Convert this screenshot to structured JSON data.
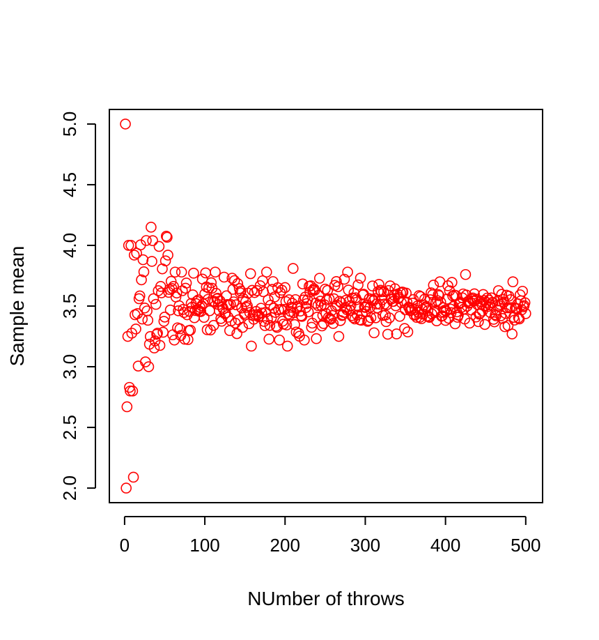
{
  "chart_data": {
    "type": "scatter",
    "title": "",
    "xlabel": "NUmber of throws",
    "ylabel": "Sample mean",
    "xlim": [
      -19,
      521
    ],
    "ylim": [
      1.88,
      5.12
    ],
    "x_ticks": [
      0,
      100,
      200,
      300,
      400,
      500
    ],
    "x_tick_labels": [
      "0",
      "100",
      "200",
      "300",
      "400",
      "500"
    ],
    "y_ticks": [
      2.0,
      2.5,
      3.0,
      3.5,
      4.0,
      4.5,
      5.0
    ],
    "y_tick_labels": [
      "2.0",
      "2.5",
      "3.0",
      "3.5",
      "4.0",
      "4.5",
      "5.0"
    ],
    "grid": false,
    "legend": "none",
    "marker": "open-circle",
    "marker_color": "#ff0000",
    "noted_points": [
      {
        "x": 1,
        "y": 5.0
      },
      {
        "x": 2,
        "y": 2.0
      },
      {
        "x": 3,
        "y": 2.67
      },
      {
        "x": 4,
        "y": 3.25
      },
      {
        "x": 5,
        "y": 4.0
      },
      {
        "x": 6,
        "y": 2.83
      },
      {
        "x": 8,
        "y": 4.0
      },
      {
        "x": 10,
        "y": 2.8
      },
      {
        "x": 11,
        "y": 2.09
      },
      {
        "x": 12,
        "y": 3.92
      },
      {
        "x": 27,
        "y": 4.04
      },
      {
        "x": 26,
        "y": 3.04
      },
      {
        "x": 30,
        "y": 3.0
      },
      {
        "x": 33,
        "y": 4.15
      },
      {
        "x": 54,
        "y": 3.92
      },
      {
        "x": 158,
        "y": 3.17
      },
      {
        "x": 203,
        "y": 3.17
      },
      {
        "x": 210,
        "y": 3.81
      },
      {
        "x": 267,
        "y": 3.25
      },
      {
        "x": 393,
        "y": 3.7
      },
      {
        "x": 425,
        "y": 3.76
      },
      {
        "x": 483,
        "y": 3.27
      },
      {
        "x": 484,
        "y": 3.7
      }
    ],
    "series": [
      {
        "n": 500,
        "x_start": 1,
        "x_end": 500,
        "center": 3.5,
        "spread_sd": 1.71
      }
    ]
  }
}
